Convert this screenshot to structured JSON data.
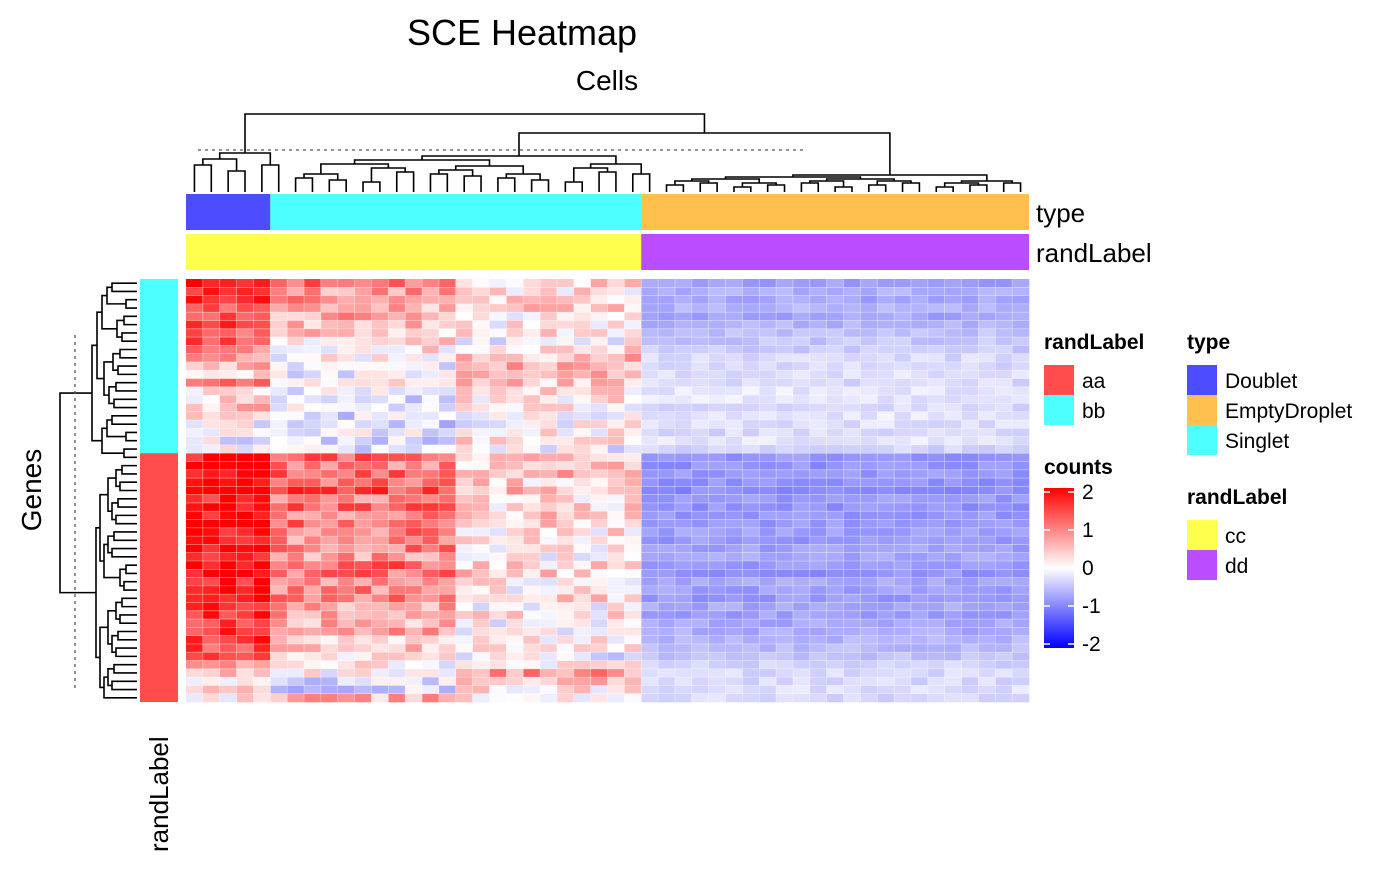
{
  "chart_data": {
    "type": "heatmap",
    "title": "SCE Heatmap",
    "column_title": "Cells",
    "row_title": "Genes",
    "row_annotation_label": "randLabel",
    "column_annotations": [
      {
        "name": "type",
        "segments": [
          {
            "label": "Doublet",
            "count": 5
          },
          {
            "label": "Singlet",
            "count": 22
          },
          {
            "label": "EmptyDroplet",
            "count": 23
          }
        ]
      },
      {
        "name": "randLabel",
        "segments": [
          {
            "label": "cc",
            "count": 27
          },
          {
            "label": "dd",
            "count": 23
          }
        ]
      }
    ],
    "row_annotation": {
      "name": "randLabel",
      "segments": [
        {
          "label": "bb",
          "count": 21
        },
        {
          "label": "aa",
          "count": 30
        }
      ]
    },
    "n_rows": 51,
    "n_cols": 50,
    "color_scale": {
      "min": -2,
      "mid": 0,
      "max": 2,
      "low": "#0000FF",
      "mid_color": "#FFFFFF",
      "high": "#FF0000"
    },
    "row_mean_by_group": [
      [
        1.7,
        1.1,
        0.3,
        -0.75
      ],
      [
        1.5,
        0.8,
        0.2,
        -0.65
      ],
      [
        1.8,
        0.9,
        0.3,
        -0.7
      ],
      [
        1.2,
        0.6,
        0.4,
        -0.6
      ],
      [
        1.4,
        0.7,
        0.2,
        -0.7
      ],
      [
        1.6,
        0.5,
        0.1,
        -0.6
      ],
      [
        1.3,
        0.4,
        0.2,
        -0.5
      ],
      [
        1.5,
        0.3,
        0.0,
        -0.45
      ],
      [
        1.1,
        0.2,
        0.3,
        -0.4
      ],
      [
        0.8,
        0.1,
        0.5,
        -0.3
      ],
      [
        0.6,
        -0.1,
        0.6,
        -0.3
      ],
      [
        0.4,
        -0.2,
        0.5,
        -0.25
      ],
      [
        0.9,
        0.0,
        0.4,
        -0.3
      ],
      [
        0.3,
        -0.2,
        0.3,
        -0.2
      ],
      [
        0.2,
        -0.3,
        0.2,
        -0.2
      ],
      [
        0.5,
        -0.1,
        0.1,
        -0.3
      ],
      [
        0.1,
        -0.3,
        -0.1,
        -0.2
      ],
      [
        0.0,
        -0.3,
        0.0,
        -0.25
      ],
      [
        0.2,
        -0.2,
        0.1,
        -0.3
      ],
      [
        -0.1,
        -0.2,
        0.3,
        -0.2
      ],
      [
        0.1,
        -0.3,
        -0.1,
        -0.35
      ],
      [
        1.9,
        1.2,
        0.5,
        -0.8
      ],
      [
        2.0,
        1.0,
        0.4,
        -0.85
      ],
      [
        1.8,
        1.3,
        0.6,
        -0.8
      ],
      [
        1.9,
        1.1,
        0.3,
        -0.85
      ],
      [
        2.0,
        1.4,
        0.5,
        -0.9
      ],
      [
        1.7,
        1.0,
        0.2,
        -0.8
      ],
      [
        1.8,
        1.2,
        0.3,
        -0.85
      ],
      [
        1.9,
        0.9,
        0.4,
        -0.8
      ],
      [
        2.0,
        1.1,
        0.3,
        -0.8
      ],
      [
        1.8,
        1.0,
        0.2,
        -0.75
      ],
      [
        1.7,
        0.9,
        0.3,
        -0.8
      ],
      [
        1.9,
        1.0,
        0.2,
        -0.75
      ],
      [
        1.8,
        0.8,
        0.1,
        -0.7
      ],
      [
        2.0,
        1.2,
        0.3,
        -0.8
      ],
      [
        1.9,
        1.1,
        0.4,
        -0.85
      ],
      [
        1.7,
        0.8,
        0.2,
        -0.7
      ],
      [
        1.8,
        0.9,
        0.1,
        -0.75
      ],
      [
        1.9,
        1.0,
        0.3,
        -0.8
      ],
      [
        1.8,
        0.7,
        0.1,
        -0.7
      ],
      [
        1.7,
        0.8,
        0.2,
        -0.75
      ],
      [
        1.6,
        0.6,
        0.0,
        -0.7
      ],
      [
        1.5,
        0.7,
        0.1,
        -0.65
      ],
      [
        1.6,
        0.5,
        0.2,
        -0.6
      ],
      [
        1.4,
        0.4,
        0.1,
        -0.55
      ],
      [
        1.2,
        0.3,
        -0.1,
        -0.5
      ],
      [
        0.8,
        0.1,
        0.0,
        -0.35
      ],
      [
        0.5,
        0.0,
        0.8,
        -0.3
      ],
      [
        0.3,
        -0.2,
        0.6,
        -0.3
      ],
      [
        0.2,
        -0.3,
        0.2,
        -0.25
      ],
      [
        0.1,
        0.6,
        0.1,
        -0.3
      ]
    ],
    "column_groups_for_values": [
      {
        "from": 0,
        "to": 4
      },
      {
        "from": 5,
        "to": 15
      },
      {
        "from": 16,
        "to": 26
      },
      {
        "from": 27,
        "to": 49
      }
    ],
    "legends": [
      {
        "title": "randLabel",
        "kind": "rows",
        "items": [
          {
            "label": "aa",
            "color": "#FF4D4D"
          },
          {
            "label": "bb",
            "color": "#4DFFFF"
          }
        ]
      },
      {
        "title": "type",
        "kind": "columns",
        "items": [
          {
            "label": "Doublet",
            "color": "#4D4DFF"
          },
          {
            "label": "EmptyDroplet",
            "color": "#FFC04D"
          },
          {
            "label": "Singlet",
            "color": "#4DFFFF"
          }
        ]
      },
      {
        "title": "counts",
        "kind": "colorbar",
        "ticks": [
          "2",
          "1",
          "0",
          "-1",
          "-2"
        ]
      },
      {
        "title": "randLabel",
        "kind": "columns",
        "items": [
          {
            "label": "cc",
            "color": "#FFFF4D"
          },
          {
            "label": "dd",
            "color": "#B94DFF"
          }
        ]
      }
    ],
    "segment_colors": {
      "Doublet": "#4D4DFF",
      "Singlet": "#4DFFFF",
      "EmptyDroplet": "#FFC04D",
      "cc": "#FFFF4D",
      "dd": "#B94DFF",
      "aa": "#FF4D4D",
      "bb": "#4DFFFF"
    }
  }
}
